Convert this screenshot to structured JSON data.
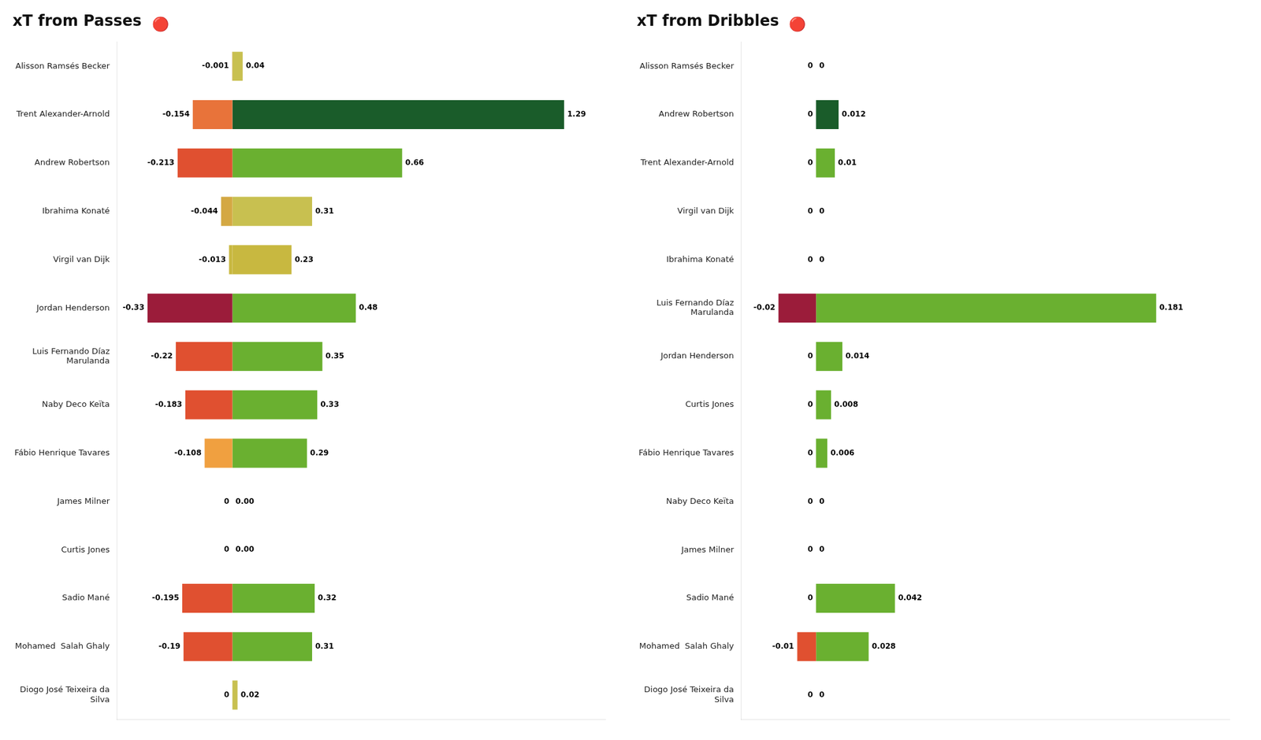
{
  "chart_data": [
    {
      "type": "bar",
      "orientation": "horizontal",
      "stacked": true,
      "title": "xT from Passes",
      "annotations": [
        "🔴"
      ],
      "categories": [
        "Alisson Ramsés Becker",
        "Trent Alexander-Arnold",
        "Andrew Robertson",
        "Ibrahima Konaté",
        "Virgil van Dijk",
        "Jordan Henderson",
        "Luis Fernando Díaz\nMarulanda",
        "Naby Deco Keïta",
        "Fábio Henrique Tavares",
        "James Milner",
        "Curtis Jones",
        "Sadio Mané",
        "Mohamed  Salah Ghaly",
        "Diogo José Teixeira da\nSilva"
      ],
      "series": [
        {
          "colors": [
            "#d4a843",
            "#e8733a",
            "#e05030",
            "#d4a843",
            "#c8b840",
            "#9b1c3a",
            "#e05030",
            "#e05030",
            "#f0a040",
            "#e05030",
            "#e05030",
            "#e05030",
            "#e05030",
            "#d4c050"
          ],
          "values": [
            -0.001,
            -0.154,
            -0.213,
            -0.044,
            -0.013,
            -0.33,
            -0.22,
            -0.183,
            -0.108,
            0,
            0,
            -0.195,
            -0.19,
            0
          ],
          "value_labels": [
            "-0.001",
            "-0.154",
            "-0.213",
            "-0.044",
            "-0.013",
            "-0.33",
            "-0.22",
            "-0.183",
            "-0.108",
            "0",
            "0",
            "-0.195",
            "-0.19",
            "0"
          ]
        },
        {
          "colors": [
            "#c8c050",
            "#1a5c2a",
            "#6ab030",
            "#c8c050",
            "#c8b840",
            "#6ab030",
            "#6ab030",
            "#6ab030",
            "#6ab030",
            "#6ab030",
            "#6ab030",
            "#6ab030",
            "#6ab030",
            "#c8c050"
          ],
          "values": [
            0.04,
            1.29,
            0.66,
            0.31,
            0.23,
            0.48,
            0.35,
            0.33,
            0.29,
            0.0,
            0.0,
            0.32,
            0.31,
            0.02
          ],
          "value_labels": [
            "0.04",
            "1.29",
            "0.66",
            "0.31",
            "0.23",
            "0.48",
            "0.35",
            "0.33",
            "0.29",
            "0.00",
            "0.00",
            "0.32",
            "0.31",
            "0.02"
          ]
        }
      ],
      "xlim": [
        -0.45,
        1.45
      ],
      "data_labels": true,
      "grid": false,
      "tick_labels": "y"
    },
    {
      "type": "bar",
      "orientation": "horizontal",
      "stacked": true,
      "title": "xT from Dribbles",
      "annotations": [
        "🔴"
      ],
      "categories": [
        "Alisson Ramsés Becker",
        "Andrew Robertson",
        "Trent Alexander-Arnold",
        "Virgil van Dijk",
        "Ibrahima Konaté",
        "Luis Fernando Díaz\nMarulanda",
        "Jordan Henderson",
        "Curtis Jones",
        "Fábio Henrique Tavares",
        "Naby Deco Keïta",
        "James Milner",
        "Sadio Mané",
        "Mohamed  Salah Ghaly",
        "Diogo José Teixeira da\nSilva"
      ],
      "series": [
        {
          "colors": [
            "#d4a843",
            "#e8733a",
            "#e05030",
            "#d4a843",
            "#c8b840",
            "#9b1c3a",
            "#e05030",
            "#e05030",
            "#f0a040",
            "#e05030",
            "#e05030",
            "#e05030",
            "#e05030",
            "#d4c050"
          ],
          "values": [
            0,
            0,
            0,
            0,
            0,
            -0.02,
            0,
            0,
            0,
            0,
            0,
            0,
            -0.01,
            0
          ],
          "value_labels": [
            "0",
            "0",
            "0",
            "0",
            "0",
            "-0.02",
            "0",
            "0",
            "0",
            "0",
            "0",
            "0",
            "-0.01",
            "0"
          ]
        },
        {
          "colors": [
            "#c8c050",
            "#1a5c2a",
            "#6ab030",
            "#c8c050",
            "#c8b840",
            "#6ab030",
            "#6ab030",
            "#6ab030",
            "#6ab030",
            "#6ab030",
            "#6ab030",
            "#6ab030",
            "#6ab030",
            "#c8c050"
          ],
          "values": [
            0,
            0.012,
            0.01,
            0,
            0,
            0.181,
            0.014,
            0.008,
            0.006,
            0,
            0,
            0.042,
            0.028,
            0
          ],
          "value_labels": [
            "0",
            "0.012",
            "0.01",
            "0",
            "0",
            "0.181",
            "0.014",
            "0.008",
            "0.006",
            "0",
            "0",
            "0.042",
            "0.028",
            "0"
          ]
        }
      ],
      "xlim": [
        -0.04,
        0.22
      ],
      "data_labels": true,
      "grid": false,
      "tick_labels": "y"
    }
  ]
}
